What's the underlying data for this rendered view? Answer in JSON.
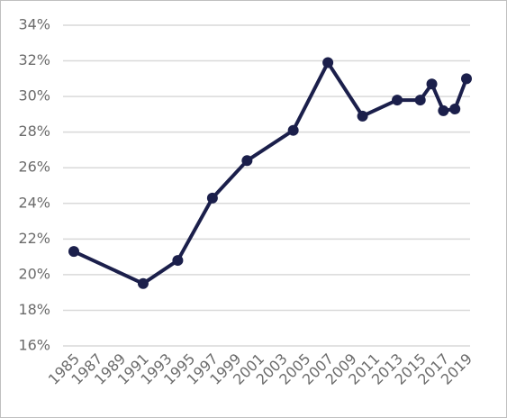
{
  "chart_data": {
    "type": "line",
    "x": [
      1985,
      1991,
      1994,
      1997,
      2000,
      2004,
      2007,
      2010,
      2013,
      2015,
      2016,
      2017,
      2018,
      2019
    ],
    "series": [
      {
        "color": "#1b1f4b",
        "values": [
          21.3,
          19.5,
          20.8,
          24.3,
          26.4,
          28.1,
          31.9,
          28.9,
          29.8,
          29.8,
          30.7,
          29.2,
          29.3,
          31.0
        ]
      }
    ],
    "xlim": [
      1985,
      2019
    ],
    "xticks": [
      1985,
      1987,
      1989,
      1991,
      1993,
      1995,
      1997,
      1999,
      2001,
      2003,
      2005,
      2007,
      2009,
      2011,
      2013,
      2015,
      2017,
      2019
    ],
    "ylim": [
      16,
      34
    ],
    "yticks": [
      {
        "value": 16,
        "label": "16%"
      },
      {
        "value": 18,
        "label": "18%"
      },
      {
        "value": 20,
        "label": "20%"
      },
      {
        "value": 22,
        "label": "22%"
      },
      {
        "value": 24,
        "label": "24%"
      },
      {
        "value": 26,
        "label": "26%"
      },
      {
        "value": 28,
        "label": "28%"
      },
      {
        "value": 30,
        "label": "30%"
      },
      {
        "value": 32,
        "label": "32%"
      },
      {
        "value": 34,
        "label": "34%"
      }
    ],
    "grid": true
  }
}
